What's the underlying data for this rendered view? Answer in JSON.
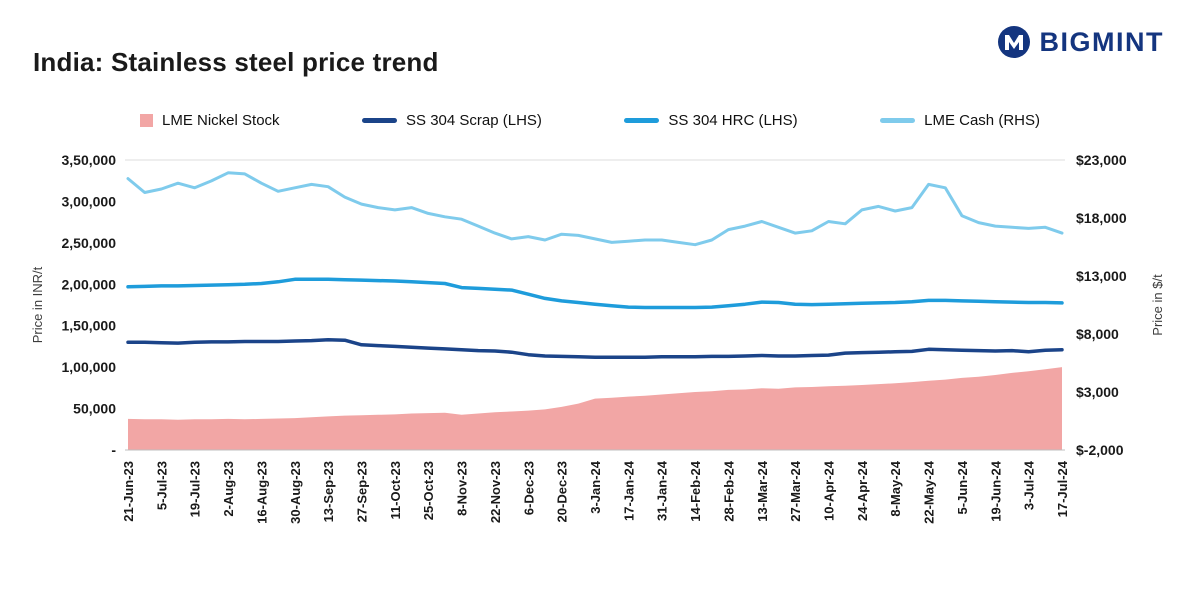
{
  "header": {
    "title": "India: Stainless steel price trend",
    "brand": "BIGMINT"
  },
  "chart_data": {
    "type": "line",
    "title": "India: Stainless steel price trend",
    "grid": "off",
    "legend_position": "top",
    "x_tick_every": 2,
    "x_tick_labels": [
      "21-Jun-23",
      "5-Jul-23",
      "19-Jul-23",
      "2-Aug-23",
      "16-Aug-23",
      "30-Aug-23",
      "13-Sep-23",
      "27-Sep-23",
      "11-Oct-23",
      "25-Oct-23",
      "8-Nov-23",
      "22-Nov-23",
      "6-Dec-23",
      "20-Dec-23",
      "3-Jan-24",
      "17-Jan-24",
      "31-Jan-24",
      "14-Feb-24",
      "28-Feb-24",
      "13-Mar-24",
      "27-Mar-24",
      "10-Apr-24",
      "24-Apr-24",
      "8-May-24",
      "22-May-24",
      "5-Jun-24",
      "19-Jun-24",
      "3-Jul-24",
      "17-Jul-24"
    ],
    "left_axis": {
      "title": "Price in INR/t",
      "min": 0,
      "max": 350000,
      "ticks": [
        {
          "value": 0,
          "label": "-"
        },
        {
          "value": 50000,
          "label": "50,000"
        },
        {
          "value": 100000,
          "label": "1,00,000"
        },
        {
          "value": 150000,
          "label": "1,50,000"
        },
        {
          "value": 200000,
          "label": "2,00,000"
        },
        {
          "value": 250000,
          "label": "2,50,000"
        },
        {
          "value": 300000,
          "label": "3,00,000"
        },
        {
          "value": 350000,
          "label": "3,50,000"
        }
      ]
    },
    "right_axis": {
      "title": "Price in $/t",
      "min": -2000,
      "max": 23000,
      "ticks": [
        {
          "value": -2000,
          "label": "$-2,000"
        },
        {
          "value": 3000,
          "label": "$3,000"
        },
        {
          "value": 8000,
          "label": "$8,000"
        },
        {
          "value": 13000,
          "label": "$13,000"
        },
        {
          "value": 18000,
          "label": "$18,000"
        },
        {
          "value": 23000,
          "label": "$23,000"
        }
      ]
    },
    "series": [
      {
        "name": "LME Nickel Stock",
        "type": "area",
        "axis": "left",
        "color": "#F2A6A5",
        "values": [
          37500,
          37000,
          37000,
          36500,
          37000,
          37000,
          37500,
          37000,
          37500,
          38000,
          38500,
          39500,
          40500,
          41500,
          42000,
          42500,
          43000,
          44000,
          44500,
          45000,
          42500,
          44000,
          45500,
          46500,
          47500,
          49000,
          52000,
          56000,
          62000,
          63000,
          64500,
          65500,
          67000,
          68500,
          70000,
          71000,
          72500,
          73000,
          74500,
          74000,
          75500,
          76000,
          77000,
          77500,
          78500,
          79500,
          80500,
          82000,
          83500,
          85000,
          87000,
          88500,
          90500,
          93000,
          95000,
          97500,
          100000
        ]
      },
      {
        "name": "SS 304 Scrap (LHS)",
        "type": "line",
        "axis": "left",
        "color": "#1B4489",
        "stroke_width": 3.5,
        "values": [
          130000,
          130000,
          129500,
          129000,
          130000,
          130500,
          130500,
          131000,
          131000,
          131000,
          131500,
          132000,
          133000,
          132500,
          127000,
          126000,
          125000,
          124000,
          123000,
          122000,
          121000,
          120000,
          119500,
          118000,
          115000,
          113500,
          113000,
          112500,
          112000,
          112000,
          112000,
          112000,
          112500,
          112500,
          112500,
          113000,
          113000,
          113500,
          114000,
          113500,
          113500,
          114000,
          114500,
          117000,
          117500,
          118000,
          118500,
          119000,
          121500,
          121000,
          120500,
          120000,
          119500,
          120000,
          118500,
          120500,
          121000
        ]
      },
      {
        "name": "SS 304 HRC (LHS)",
        "type": "line",
        "axis": "left",
        "color": "#1E9CDB",
        "stroke_width": 3.5,
        "values": [
          197000,
          197500,
          198000,
          198000,
          198500,
          199000,
          199500,
          200000,
          201000,
          203000,
          206000,
          206000,
          206000,
          205500,
          205000,
          204500,
          204000,
          203000,
          202000,
          201000,
          196000,
          195000,
          194000,
          193000,
          188000,
          183000,
          180000,
          178000,
          176000,
          174000,
          172500,
          172000,
          172000,
          172000,
          172000,
          172500,
          174000,
          176000,
          178500,
          178000,
          176000,
          175500,
          176000,
          176500,
          177000,
          177500,
          178000,
          179000,
          180500,
          180500,
          180000,
          179500,
          179000,
          178500,
          178000,
          178000,
          177500
        ]
      },
      {
        "name": "LME Cash (RHS)",
        "type": "line",
        "axis": "right",
        "color": "#7FCBEC",
        "stroke_width": 3,
        "values": [
          21400,
          20200,
          20500,
          21000,
          20600,
          21200,
          21900,
          21800,
          21000,
          20300,
          20600,
          20900,
          20700,
          19800,
          19200,
          18900,
          18700,
          18900,
          18400,
          18100,
          17900,
          17300,
          16700,
          16200,
          16400,
          16100,
          16600,
          16500,
          16200,
          15900,
          16000,
          16100,
          16100,
          15900,
          15700,
          16100,
          17000,
          17300,
          17700,
          17200,
          16700,
          16900,
          17700,
          17500,
          18700,
          19000,
          18600,
          18900,
          20900,
          20600,
          18200,
          17600,
          17300,
          17200,
          17100,
          17200,
          16700
        ]
      }
    ]
  }
}
